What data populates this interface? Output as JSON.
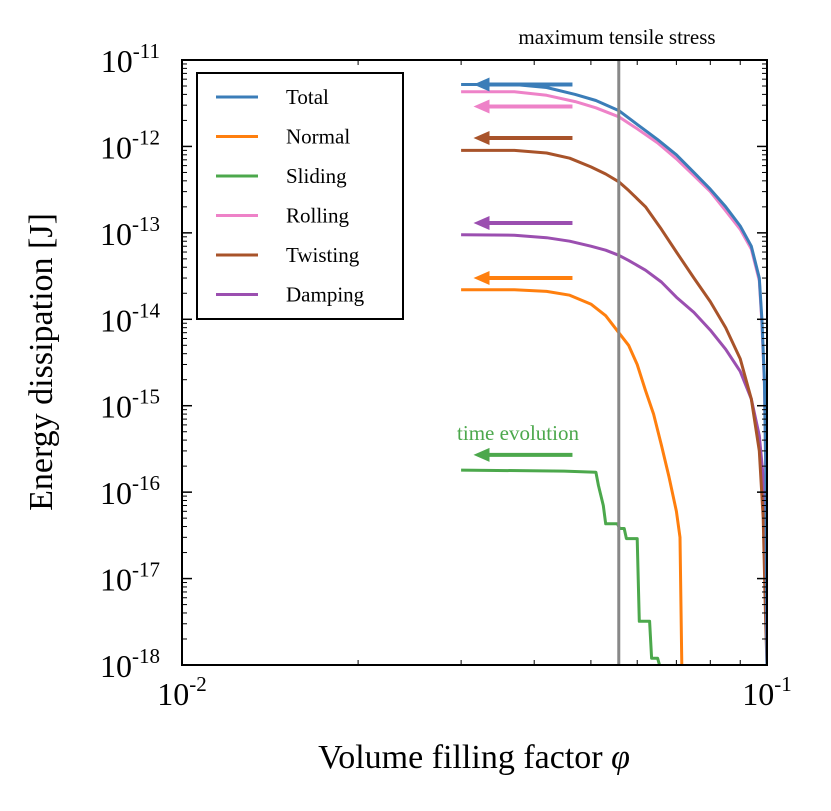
{
  "chart_data": {
    "type": "line",
    "xscale": "log",
    "yscale": "log",
    "xlabel": "Volume filling factor ",
    "xlabel_symbol": "φ",
    "ylabel": "Energy dissipation [J]",
    "xlim": [
      0.01,
      0.1
    ],
    "ylim": [
      1e-18,
      1e-11
    ],
    "x_ticks": [
      {
        "value": 0.01,
        "base": "10",
        "exp": "-2"
      },
      {
        "value": 0.1,
        "base": "10",
        "exp": "-1"
      }
    ],
    "y_ticks": [
      {
        "value": 1e-11,
        "base": "10",
        "exp": "-11"
      },
      {
        "value": 1e-12,
        "base": "10",
        "exp": "-12"
      },
      {
        "value": 1e-13,
        "base": "10",
        "exp": "-13"
      },
      {
        "value": 1e-14,
        "base": "10",
        "exp": "-14"
      },
      {
        "value": 1e-15,
        "base": "10",
        "exp": "-15"
      },
      {
        "value": 1e-16,
        "base": "10",
        "exp": "-16"
      },
      {
        "value": 1e-17,
        "base": "10",
        "exp": "-17"
      },
      {
        "value": 1e-18,
        "base": "10",
        "exp": "-18"
      }
    ],
    "vline": {
      "x": 0.0558,
      "label": "maximum tensile stress",
      "color": "#888888"
    },
    "annotation": {
      "text": "time evolution",
      "color": "#4ca84c"
    },
    "legend_position": "upper-left",
    "series": [
      {
        "name": "Total",
        "color": "#3b7db8",
        "arrow_y": 5.2e-12,
        "points": [
          [
            0.03,
            5.2e-12
          ],
          [
            0.037,
            5.2e-12
          ],
          [
            0.042,
            4.8e-12
          ],
          [
            0.047,
            4e-12
          ],
          [
            0.051,
            3.4e-12
          ],
          [
            0.0558,
            2.6e-12
          ],
          [
            0.06,
            1.8e-12
          ],
          [
            0.065,
            1.2e-12
          ],
          [
            0.07,
            8e-13
          ],
          [
            0.075,
            5e-13
          ],
          [
            0.08,
            3.2e-13
          ],
          [
            0.085,
            2e-13
          ],
          [
            0.09,
            1.2e-13
          ],
          [
            0.094,
            7e-14
          ],
          [
            0.097,
            3e-14
          ],
          [
            0.098,
            1e-14
          ],
          [
            0.099,
            2e-15
          ],
          [
            0.0995,
            2e-16
          ],
          [
            0.1,
            1e-18
          ]
        ]
      },
      {
        "name": "Normal",
        "color": "#ff7f0e",
        "arrow_y": 3e-14,
        "points": [
          [
            0.03,
            2.2e-14
          ],
          [
            0.037,
            2.2e-14
          ],
          [
            0.042,
            2.1e-14
          ],
          [
            0.046,
            1.9e-14
          ],
          [
            0.05,
            1.5e-14
          ],
          [
            0.053,
            1.1e-14
          ],
          [
            0.0558,
            7e-15
          ],
          [
            0.058,
            5e-15
          ],
          [
            0.06,
            3e-15
          ],
          [
            0.062,
            1.5e-15
          ],
          [
            0.064,
            8e-16
          ],
          [
            0.066,
            3.5e-16
          ],
          [
            0.068,
            1.5e-16
          ],
          [
            0.07,
            6e-17
          ],
          [
            0.071,
            3e-17
          ],
          [
            0.0715,
            1e-18
          ]
        ]
      },
      {
        "name": "Sliding",
        "color": "#4ca84c",
        "arrow_y": 2.7e-16,
        "points": [
          [
            0.03,
            1.8e-16
          ],
          [
            0.045,
            1.75e-16
          ],
          [
            0.051,
            1.7e-16
          ],
          [
            0.0515,
            1.2e-16
          ],
          [
            0.0525,
            7e-17
          ],
          [
            0.053,
            4.3e-17
          ],
          [
            0.055,
            4.3e-17
          ],
          [
            0.0555,
            4.3e-17
          ],
          [
            0.056,
            3.8e-17
          ],
          [
            0.057,
            3.8e-17
          ],
          [
            0.0575,
            2.9e-17
          ],
          [
            0.06,
            2.9e-17
          ],
          [
            0.0605,
            3.2e-18
          ],
          [
            0.063,
            3.2e-18
          ],
          [
            0.0635,
            1.2e-18
          ],
          [
            0.065,
            1.2e-18
          ],
          [
            0.0655,
            1e-18
          ]
        ]
      },
      {
        "name": "Rolling",
        "color": "#ee82c8",
        "arrow_y": 2.9e-12,
        "points": [
          [
            0.03,
            4.3e-12
          ],
          [
            0.037,
            4.3e-12
          ],
          [
            0.042,
            3.9e-12
          ],
          [
            0.047,
            3.3e-12
          ],
          [
            0.051,
            2.8e-12
          ],
          [
            0.0558,
            2.2e-12
          ],
          [
            0.06,
            1.6e-12
          ],
          [
            0.065,
            1.1e-12
          ],
          [
            0.07,
            7.2e-13
          ],
          [
            0.075,
            4.6e-13
          ],
          [
            0.08,
            3e-13
          ],
          [
            0.085,
            1.8e-13
          ],
          [
            0.09,
            1.1e-13
          ],
          [
            0.094,
            6.5e-14
          ],
          [
            0.097,
            2.8e-14
          ],
          [
            0.098,
            9e-15
          ],
          [
            0.099,
            1.8e-15
          ],
          [
            0.0995,
            2e-16
          ],
          [
            0.1,
            1e-18
          ]
        ]
      },
      {
        "name": "Twisting",
        "color": "#a8532a",
        "arrow_y": 1.25e-12,
        "points": [
          [
            0.03,
            9e-13
          ],
          [
            0.037,
            9e-13
          ],
          [
            0.042,
            8.4e-13
          ],
          [
            0.046,
            7.3e-13
          ],
          [
            0.05,
            5.8e-13
          ],
          [
            0.053,
            4.8e-13
          ],
          [
            0.0558,
            3.9e-13
          ],
          [
            0.058,
            3.1e-13
          ],
          [
            0.062,
            2e-13
          ],
          [
            0.066,
            1.1e-13
          ],
          [
            0.07,
            6e-14
          ],
          [
            0.075,
            3e-14
          ],
          [
            0.08,
            1.6e-14
          ],
          [
            0.085,
            8e-15
          ],
          [
            0.09,
            3.5e-15
          ],
          [
            0.094,
            1.2e-15
          ],
          [
            0.097,
            3e-16
          ],
          [
            0.0985,
            5e-17
          ],
          [
            0.0995,
            3e-18
          ],
          [
            0.1,
            1e-18
          ]
        ]
      },
      {
        "name": "Damping",
        "color": "#9b4fb0",
        "arrow_y": 1.3e-13,
        "points": [
          [
            0.03,
            9.5e-14
          ],
          [
            0.037,
            9.4e-14
          ],
          [
            0.042,
            8.8e-14
          ],
          [
            0.046,
            8e-14
          ],
          [
            0.05,
            7e-14
          ],
          [
            0.053,
            6.3e-14
          ],
          [
            0.0558,
            5.5e-14
          ],
          [
            0.058,
            4.8e-14
          ],
          [
            0.062,
            3.7e-14
          ],
          [
            0.066,
            2.7e-14
          ],
          [
            0.07,
            1.8e-14
          ],
          [
            0.075,
            1.2e-14
          ],
          [
            0.08,
            7.5e-15
          ],
          [
            0.085,
            4.5e-15
          ],
          [
            0.09,
            2.5e-15
          ],
          [
            0.094,
            1.2e-15
          ],
          [
            0.097,
            4.5e-16
          ],
          [
            0.0985,
            1.5e-16
          ],
          [
            0.0995,
            3e-17
          ],
          [
            0.1,
            1e-18
          ]
        ]
      }
    ]
  }
}
